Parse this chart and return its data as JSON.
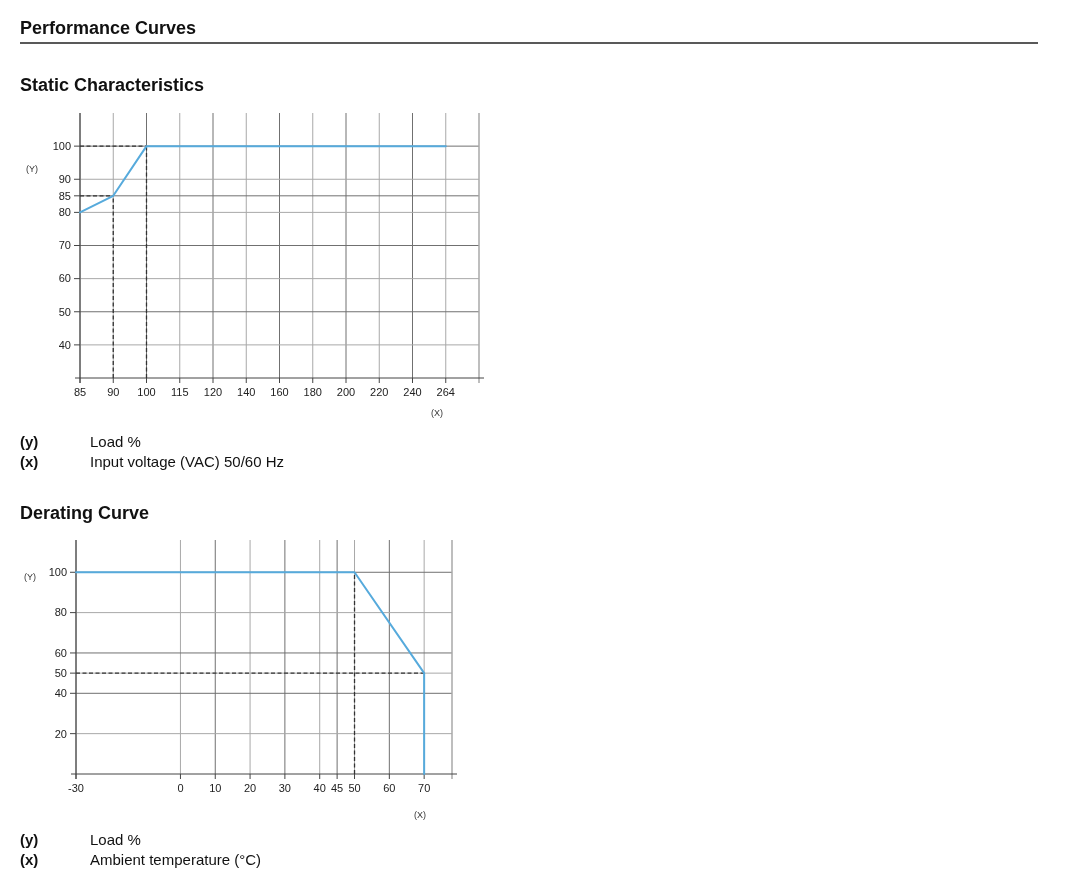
{
  "chart_data": [
    {
      "type": "line",
      "title": "Performance Curves",
      "subtitle": "Static Characteristics",
      "xlabel": "(X)",
      "ylabel": "(Y)",
      "categories": [
        "85",
        "90",
        "100",
        "115",
        "120",
        "140",
        "160",
        "180",
        "200",
        "220",
        "240",
        "264"
      ],
      "series": [
        {
          "color": "#56aadc",
          "values": [
            80,
            85,
            100,
            100,
            100,
            100,
            100,
            100,
            100,
            100,
            100,
            100
          ]
        }
      ],
      "ylim": [
        30,
        110
      ],
      "yticks": [
        40,
        50,
        60,
        70,
        80,
        85,
        90,
        100
      ],
      "grid": true,
      "ref_lines": [
        {
          "axis": "y",
          "value": 85,
          "color": "#333333",
          "line_style": "dashed"
        },
        {
          "axis": "y",
          "value": 100,
          "color": "#333333",
          "line_style": "dashed"
        },
        {
          "axis": "x",
          "value": "90",
          "color": "#333333",
          "line_style": "dashed"
        },
        {
          "axis": "x",
          "value": "100",
          "color": "#333333",
          "line_style": "dashed"
        }
      ],
      "annotations": [
        "(y)",
        "Load %",
        "(x)",
        "Input voltage (VAC) 50/60 Hz"
      ]
    },
    {
      "type": "line",
      "title": "Derating Curve",
      "xlabel": "(X)",
      "ylabel": "(Y)",
      "x": [
        -30,
        50,
        70,
        70
      ],
      "series": [
        {
          "color": "#56aadc",
          "values": [
            100,
            100,
            50,
            0
          ]
        },
        {
          "color": "#333333",
          "line_style": "dashed",
          "x": [
            -30,
            70
          ],
          "values": [
            50,
            50
          ]
        },
        {
          "color": "#333333",
          "line_style": "dashed",
          "x": [
            50,
            50
          ],
          "values": [
            0,
            100
          ]
        }
      ],
      "xlim": [
        -30,
        78
      ],
      "xticks": [
        -30,
        0,
        10,
        20,
        30,
        40,
        45,
        50,
        60,
        70
      ],
      "ylim": [
        0,
        116
      ],
      "yticks": [
        20,
        40,
        50,
        60,
        80,
        100
      ],
      "grid": true,
      "annotations": [
        "(y)",
        "Load %",
        "(x)",
        "Ambient temperature (°C)"
      ]
    }
  ]
}
